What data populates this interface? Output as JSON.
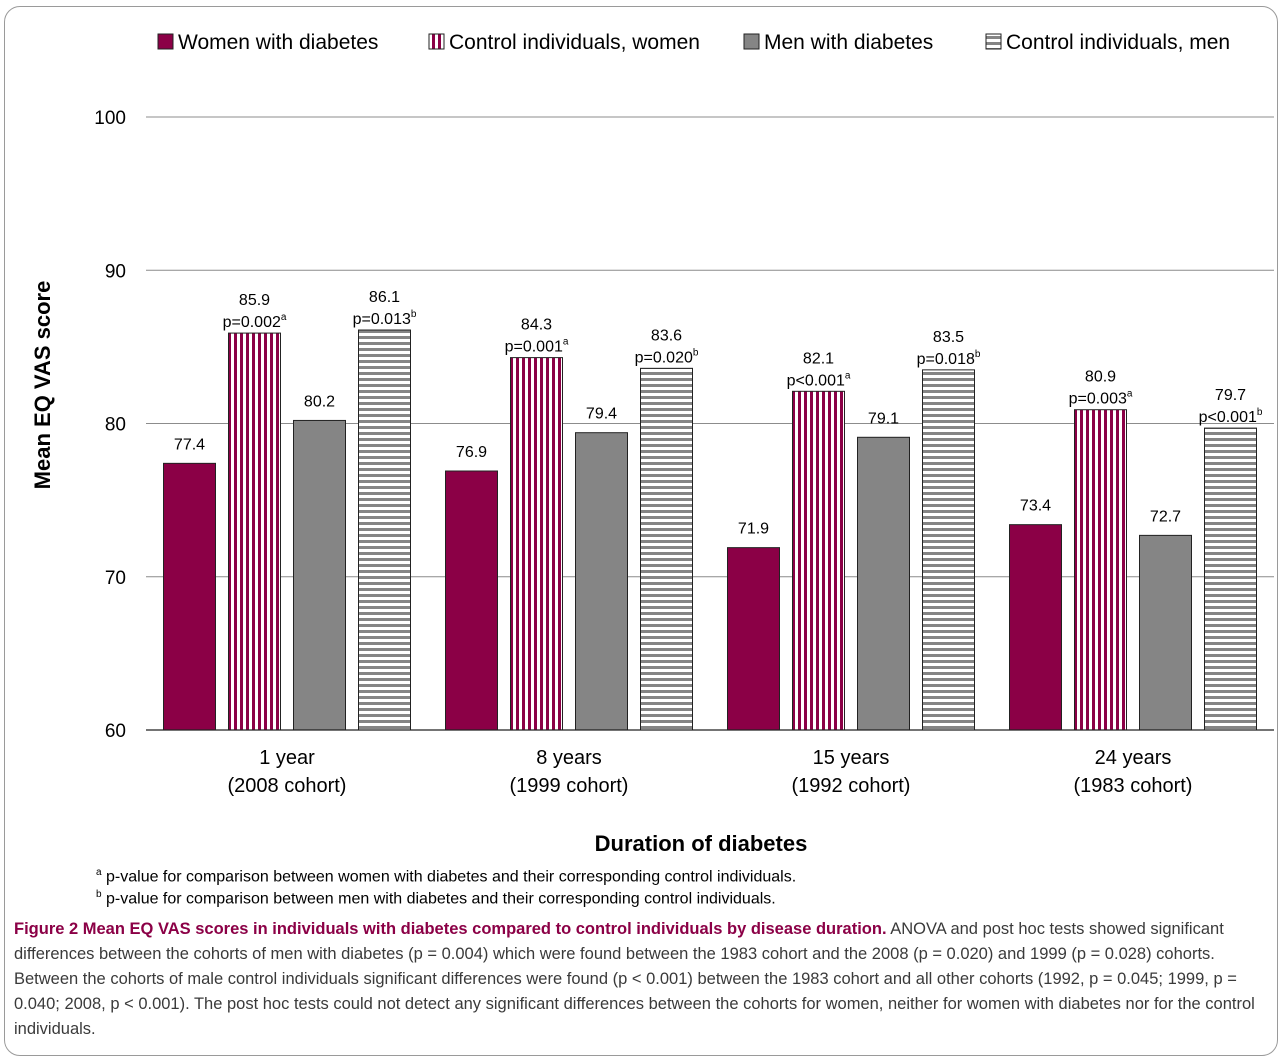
{
  "chart_data": {
    "type": "bar",
    "xlabel": "Duration of diabetes",
    "ylabel": "Mean EQ VAS score",
    "ylim": [
      60,
      100
    ],
    "yticks": [
      60,
      70,
      80,
      90,
      100
    ],
    "grid": "horizontal",
    "legend_position": "top",
    "categories": [
      {
        "line1": "1 year",
        "line2": "(2008 cohort)"
      },
      {
        "line1": "8 years",
        "line2": "(1999 cohort)"
      },
      {
        "line1": "15 years",
        "line2": "(1992 cohort)"
      },
      {
        "line1": "24 years",
        "line2": "(1983 cohort)"
      }
    ],
    "series": [
      {
        "name": "Women with diabetes",
        "color": "#8b0046",
        "pattern": "solid",
        "values": [
          77.4,
          76.9,
          71.9,
          73.4
        ],
        "pvalues": [
          "",
          "",
          "",
          ""
        ],
        "sup": ""
      },
      {
        "name": "Control individuals, women",
        "color": "#8b0046",
        "pattern": "vertical-stripes",
        "values": [
          85.9,
          84.3,
          82.1,
          80.9
        ],
        "pvalues": [
          "p=0.002",
          "p=0.001",
          "p<0.001",
          "p=0.003"
        ],
        "sup": "a"
      },
      {
        "name": "Men with diabetes",
        "color": "#858585",
        "pattern": "solid",
        "values": [
          80.2,
          79.4,
          79.1,
          72.7
        ],
        "pvalues": [
          "",
          "",
          "",
          ""
        ],
        "sup": ""
      },
      {
        "name": "Control individuals, men",
        "color": "#858585",
        "pattern": "horizontal-stripes",
        "values": [
          86.1,
          83.6,
          83.5,
          79.7
        ],
        "pvalues": [
          "p=0.013",
          "p=0.020",
          "p=0.018",
          "p<0.001"
        ],
        "sup": "b"
      }
    ]
  },
  "footnotes": {
    "a_mark": "a",
    "a_text": " p-value for comparison between women with diabetes and their corresponding control individuals.",
    "b_mark": "b",
    "b_text": " p-value for comparison between men with diabetes and their corresponding control individuals."
  },
  "caption": {
    "title": "Figure 2 Mean EQ VAS scores in individuals with diabetes compared to control individuals by disease duration.",
    "body": " ANOVA and post hoc tests showed significant differences between the cohorts of men with diabetes (p = 0.004) which were found between the 1983 cohort and the 2008 (p = 0.020) and 1999 (p = 0.028) cohorts. Between the cohorts of male control individuals significant differences were found (p < 0.001) between the 1983 cohort and all other cohorts (1992, p = 0.045; 1999, p = 0.040; 2008, p < 0.001). The post hoc tests could not detect any significant differences between the cohorts for women, neither for women with diabetes nor for the control individuals."
  }
}
